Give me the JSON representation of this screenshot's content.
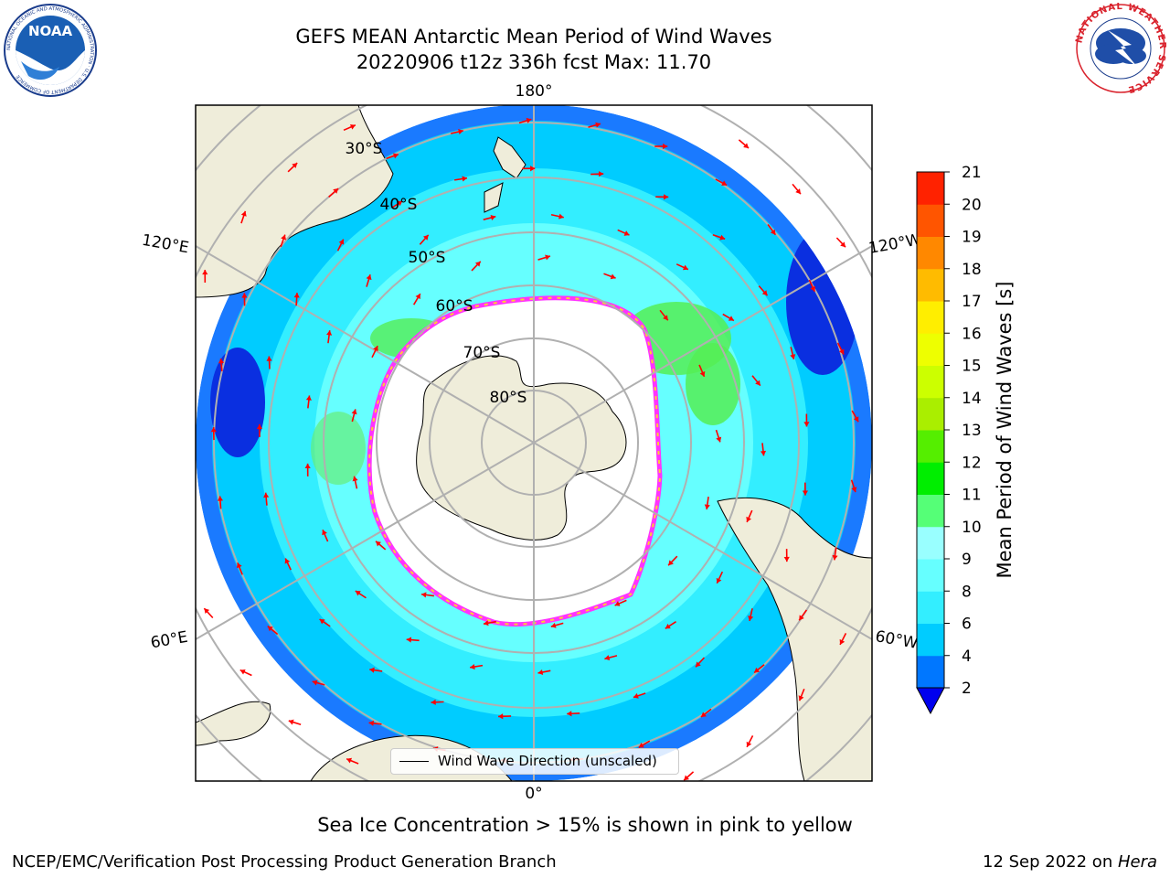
{
  "title": {
    "line1": "GEFS MEAN Antarctic Mean Period of Wind Waves",
    "line2": "20220906 t12z 336h fcst   Max: 11.70"
  },
  "map": {
    "projection": "south-polar-stereographic",
    "meridian_labels": [
      "180°",
      "120°E",
      "120°W",
      "60°E",
      "60°W",
      "0°"
    ],
    "parallel_labels": [
      "30°S",
      "40°S",
      "50°S",
      "60°S",
      "70°S",
      "80°S"
    ],
    "legend_label": "Wind Wave Direction (unscaled)",
    "arrow_color": "#ff0000",
    "ice_edge_colors": [
      "#ff33ff",
      "#ffcc33"
    ],
    "land_color": "#efedda"
  },
  "colorbar": {
    "label": "Mean Period of Wind Waves [s]",
    "ticks": [
      "2",
      "4",
      "6",
      "8",
      "9",
      "10",
      "11",
      "12",
      "13",
      "14",
      "15",
      "16",
      "17",
      "18",
      "19",
      "20",
      "21"
    ],
    "colors": [
      "#0077ff",
      "#00ccff",
      "#33eeff",
      "#66ffff",
      "#99ffff",
      "#55ff77",
      "#00ee00",
      "#55ee00",
      "#aaee00",
      "#ccff00",
      "#eeff00",
      "#ffee00",
      "#ffbb00",
      "#ff8800",
      "#ff5500",
      "#ff2200"
    ],
    "under_color": "#0000ee"
  },
  "note": "Sea Ice Concentration > 15% is shown in pink to yellow",
  "footer": {
    "left": "NCEP/EMC/Verification Post Processing Product Generation Branch",
    "date": "12 Sep 2022 on ",
    "machine": "Hera"
  },
  "logos": {
    "noaa_text": "NOAA",
    "noaa_ring": "NATIONAL OCEANIC AND ATMOSPHERIC ADMINISTRATION · U.S. DEPARTMENT OF COMMERCE",
    "nws_ring": "NATIONAL WEATHER SERVICE"
  }
}
